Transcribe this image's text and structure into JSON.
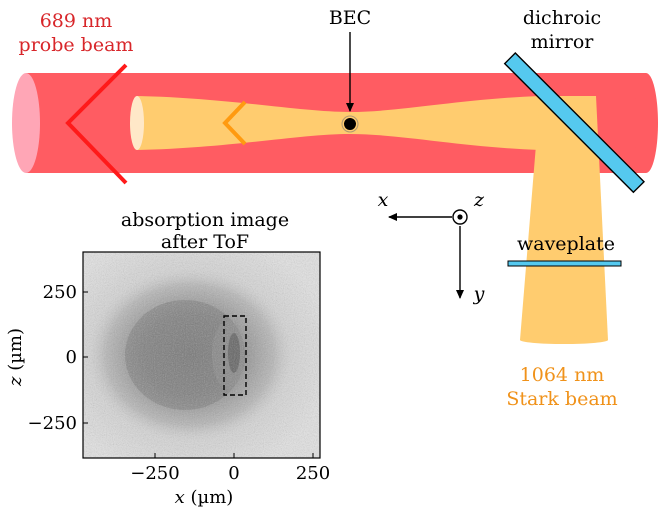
{
  "labels": {
    "probe_beam": [
      "689 nm",
      "probe beam"
    ],
    "bec": "BEC",
    "dichroic": [
      "dichroic",
      "mirror"
    ],
    "waveplate": "waveplate",
    "stark_beam": [
      "1064 nm",
      "Stark beam"
    ],
    "absorption": [
      "absorption image",
      "after ToF"
    ]
  },
  "axes_triad": {
    "x": "x",
    "y": "y",
    "z": "z"
  },
  "inset_plot": {
    "xlabel_var": "x",
    "xlabel_unit": " (µm)",
    "ylabel_var": "z",
    "ylabel_unit": " (µm)",
    "xticks": [
      "−250",
      "0",
      "250"
    ],
    "yticks": [
      "250",
      "0",
      "−250"
    ]
  },
  "colors": {
    "probe_beam": "#ff5c62",
    "probe_end": "#ffa6b6",
    "stark_beam": "#ffcc6f",
    "stark_end": "#ffe8c8",
    "mirror": "#55c9ef",
    "probe_arrow": "#ff1a1a",
    "stark_arrow": "#ff9a10",
    "probe_text": "#d8262a",
    "stark_text": "#f0921a"
  }
}
